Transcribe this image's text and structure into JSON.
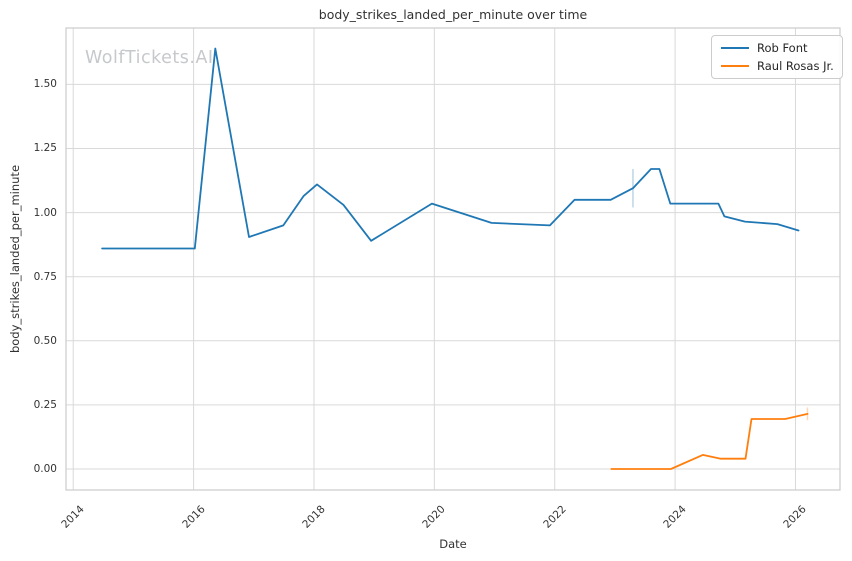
{
  "watermark": {
    "text": "WolfTickets.AI"
  },
  "chart_data": {
    "type": "line",
    "title": "body_strikes_landed_per_minute over time",
    "xlabel": "Date",
    "ylabel": "body_strikes_landed_per_minute",
    "xlim": [
      2013.88,
      2026.74
    ],
    "ylim": [
      -0.082,
      1.72
    ],
    "grid": true,
    "grid_color": "#d9d9d9",
    "spine_color": "#cccccc",
    "x_tick_values": [
      2014,
      2016,
      2018,
      2020,
      2022,
      2024,
      2026
    ],
    "x_tick_labels": [
      "2014",
      "2016",
      "2018",
      "2020",
      "2022",
      "2024",
      "2026"
    ],
    "y_tick_values": [
      0,
      0.25,
      0.5,
      0.75,
      1.0,
      1.25,
      1.5
    ],
    "y_tick_labels": [
      "0.00",
      "0.25",
      "0.50",
      "0.75",
      "1.00",
      "1.25",
      "1.50"
    ],
    "legend_position": "upper right",
    "series": [
      {
        "name": "Rob Font",
        "color": "#1f77b4",
        "points": [
          [
            2014.48,
            0.86
          ],
          [
            2016.02,
            0.86
          ],
          [
            2016.36,
            1.64
          ],
          [
            2016.92,
            0.905
          ],
          [
            2017.49,
            0.95
          ],
          [
            2017.83,
            1.065
          ],
          [
            2018.05,
            1.11
          ],
          [
            2018.49,
            1.03
          ],
          [
            2018.95,
            0.89
          ],
          [
            2019.96,
            1.035
          ],
          [
            2020.95,
            0.96
          ],
          [
            2021.92,
            0.95
          ],
          [
            2022.33,
            1.05
          ],
          [
            2022.93,
            1.05
          ],
          [
            2023.3,
            1.095
          ],
          [
            2023.6,
            1.17
          ],
          [
            2023.74,
            1.17
          ],
          [
            2023.92,
            1.035
          ],
          [
            2024.72,
            1.035
          ],
          [
            2024.82,
            0.985
          ],
          [
            2025.16,
            0.965
          ],
          [
            2025.7,
            0.955
          ],
          [
            2026.05,
            0.93
          ]
        ]
      },
      {
        "name": "Raul Rosas Jr.",
        "color": "#ff7f0e",
        "points": [
          [
            2022.94,
            0.0
          ],
          [
            2023.93,
            0.0
          ],
          [
            2024.46,
            0.055
          ],
          [
            2024.76,
            0.04
          ],
          [
            2025.17,
            0.04
          ],
          [
            2025.27,
            0.195
          ],
          [
            2025.83,
            0.195
          ],
          [
            2026.2,
            0.215
          ]
        ]
      }
    ],
    "error_bars": [
      {
        "series": "Rob Font",
        "x": 2023.3,
        "y_low": 1.02,
        "y_high": 1.17
      },
      {
        "series": "Raul Rosas Jr.",
        "x": 2026.2,
        "y_low": 0.19,
        "y_high": 0.24
      }
    ]
  }
}
